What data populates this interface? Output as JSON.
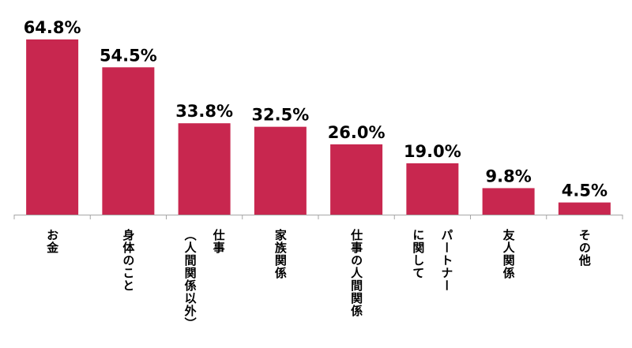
{
  "chart_data": {
    "type": "bar",
    "title": "",
    "xlabel": "",
    "ylabel": "",
    "ylim": [
      0,
      70
    ],
    "grid": false,
    "legend": "none",
    "bar_color": "#c8274f",
    "categories": [
      [
        "お金"
      ],
      [
        "身体のこと"
      ],
      [
        "仕事",
        "（人間関係以外）"
      ],
      [
        "家族関係"
      ],
      [
        "仕事の人間関係"
      ],
      [
        "パートナー",
        "に関して"
      ],
      [
        "友人関係"
      ],
      [
        "その他"
      ]
    ],
    "values": [
      64.8,
      54.5,
      33.8,
      32.5,
      26.0,
      19.0,
      9.8,
      4.5
    ],
    "value_labels": [
      "64.8%",
      "54.5%",
      "33.8%",
      "32.5%",
      "26.0%",
      "19.0%",
      "9.8%",
      "4.5%"
    ]
  }
}
